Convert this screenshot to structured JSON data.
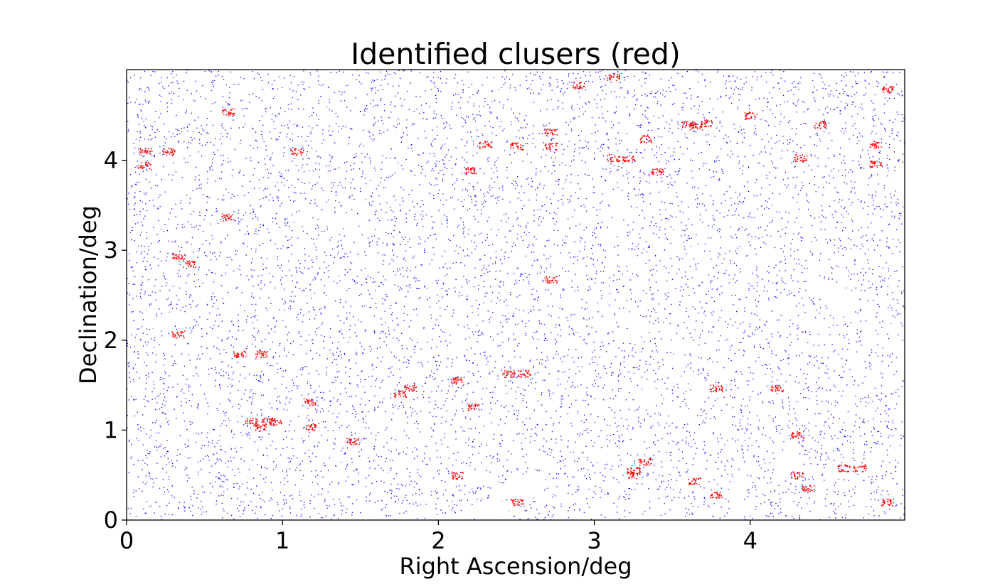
{
  "chart_data": {
    "type": "scatter",
    "title": "Identified clusers (red)",
    "xlabel": "Right Ascension/deg",
    "ylabel": "Declination/deg",
    "xlim": [
      0,
      5
    ],
    "ylim": [
      0,
      5
    ],
    "xticks": [
      0,
      1,
      2,
      3,
      4
    ],
    "yticks": [
      0,
      1,
      2,
      3,
      4
    ],
    "grid": false,
    "series": [
      {
        "role": "background sources",
        "color": "#0000ff",
        "density": "dense uniform field",
        "masked_regions_deg": [
          [
            0.1,
            0.2,
            2.13,
            2.21
          ],
          [
            0.23,
            0.38,
            2.17,
            2.31
          ],
          [
            0.55,
            0.63,
            3.15,
            3.23
          ],
          [
            0.36,
            0.48,
            3.15,
            3.22
          ],
          [
            1.24,
            1.47,
            3.29,
            3.41
          ],
          [
            0.35,
            0.5,
            0.71,
            0.79
          ],
          [
            0.65,
            0.8,
            0.82,
            0.9
          ],
          [
            0.05,
            0.15,
            0.25,
            0.31
          ],
          [
            0.42,
            0.52,
            0.4,
            0.46
          ],
          [
            2.25,
            2.45,
            0.02,
            0.21
          ],
          [
            2.45,
            2.68,
            0.25,
            0.5
          ],
          [
            2.4,
            2.6,
            0.26,
            0.34
          ],
          [
            2.15,
            2.27,
            0.02,
            0.08
          ],
          [
            4.4,
            4.6,
            2.47,
            2.64
          ],
          [
            4.5,
            4.7,
            2.38,
            2.53
          ],
          [
            4.5,
            4.6,
            2.3,
            2.4
          ],
          [
            4.35,
            4.45,
            2.1,
            2.21
          ],
          [
            4.7,
            4.8,
            2.22,
            2.3
          ],
          [
            4.75,
            4.85,
            1.98,
            2.05
          ],
          [
            4.85,
            4.97,
            2.08,
            2.18
          ],
          [
            4.4,
            4.5,
            2.8,
            2.86
          ],
          [
            4.05,
            4.2,
            1.18,
            1.24
          ],
          [
            2.95,
            3.1,
            1.4,
            1.46
          ],
          [
            2.55,
            2.85,
            4.68,
            4.73
          ],
          [
            2.4,
            2.55,
            4.7,
            4.76
          ],
          [
            1.82,
            1.9,
            4.73,
            4.84
          ],
          [
            0.9,
            1.0,
            4.59,
            4.64
          ],
          [
            1.0,
            1.1,
            1.13,
            1.2
          ],
          [
            2.65,
            2.78,
            1.45,
            1.49
          ],
          [
            1.6,
            1.7,
            0.48,
            0.53
          ],
          [
            3.35,
            3.45,
            3.55,
            3.62
          ]
        ]
      },
      {
        "role": "identified clusters",
        "color": "#ff0000",
        "points": [
          [
            0.12,
            4.1
          ],
          [
            0.11,
            3.95
          ],
          [
            0.27,
            4.1
          ],
          [
            0.65,
            4.54
          ],
          [
            1.09,
            4.1
          ],
          [
            2.9,
            4.84
          ],
          [
            3.12,
            4.93
          ],
          [
            2.72,
            4.32
          ],
          [
            2.3,
            4.18
          ],
          [
            2.5,
            4.16
          ],
          [
            2.72,
            4.16
          ],
          [
            2.2,
            3.89
          ],
          [
            3.33,
            4.24
          ],
          [
            3.12,
            4.03
          ],
          [
            3.22,
            4.03
          ],
          [
            3.4,
            3.88
          ],
          [
            3.6,
            4.4
          ],
          [
            3.72,
            4.42
          ],
          [
            3.65,
            4.38
          ],
          [
            4.0,
            4.5
          ],
          [
            4.45,
            4.4
          ],
          [
            4.32,
            4.03
          ],
          [
            4.8,
            4.18
          ],
          [
            4.8,
            3.96
          ],
          [
            4.88,
            4.79
          ],
          [
            0.64,
            3.37
          ],
          [
            0.33,
            2.92
          ],
          [
            0.4,
            2.85
          ],
          [
            2.72,
            2.68
          ],
          [
            0.33,
            2.07
          ],
          [
            0.72,
            1.85
          ],
          [
            0.86,
            1.85
          ],
          [
            2.45,
            1.63
          ],
          [
            2.55,
            1.63
          ],
          [
            2.12,
            1.55
          ],
          [
            1.75,
            1.41
          ],
          [
            1.82,
            1.47
          ],
          [
            1.17,
            1.32
          ],
          [
            2.22,
            1.26
          ],
          [
            3.78,
            1.47
          ],
          [
            4.17,
            1.47
          ],
          [
            0.8,
            1.1
          ],
          [
            0.9,
            1.1
          ],
          [
            0.85,
            1.03
          ],
          [
            0.95,
            1.1
          ],
          [
            1.17,
            1.03
          ],
          [
            1.45,
            0.88
          ],
          [
            4.3,
            0.95
          ],
          [
            2.12,
            0.5
          ],
          [
            3.25,
            0.55
          ],
          [
            3.32,
            0.65
          ],
          [
            3.25,
            0.5
          ],
          [
            3.64,
            0.44
          ],
          [
            3.78,
            0.28
          ],
          [
            2.5,
            0.2
          ],
          [
            4.3,
            0.5
          ],
          [
            4.37,
            0.36
          ],
          [
            4.6,
            0.58
          ],
          [
            4.7,
            0.58
          ],
          [
            4.88,
            0.2
          ]
        ]
      }
    ]
  }
}
